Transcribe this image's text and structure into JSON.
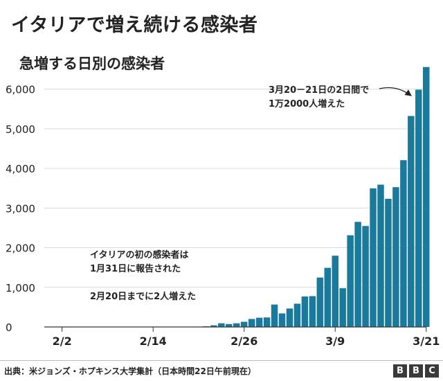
{
  "title": "イタリアで増え続ける感染者",
  "subtitle": "急増する日別の感染者",
  "source": "出典：米ジョンズ・ホプキンス大学集計（日本時間22日午前現在）",
  "logo": {
    "letters": [
      "B",
      "B",
      "C"
    ]
  },
  "chart_data": {
    "type": "bar",
    "title": "急増する日別の感染者",
    "xlabel": "",
    "ylabel": "",
    "ylim": [
      0,
      6500
    ],
    "y_ticks": [
      0,
      1000,
      2000,
      3000,
      4000,
      5000,
      6000
    ],
    "y_tick_labels": [
      "0",
      "1,000",
      "2,000",
      "3,000",
      "4,000",
      "5,000",
      "6,000"
    ],
    "x_tick_labels": [
      {
        "label": "2/2",
        "index": 2
      },
      {
        "label": "2/14",
        "index": 14
      },
      {
        "label": "2/26",
        "index": 26
      },
      {
        "label": "3/9",
        "index": 38
      },
      {
        "label": "3/21",
        "index": 50
      }
    ],
    "start_date": "1/31",
    "bar_color": "#1a7a9c",
    "values": [
      2,
      0,
      0,
      0,
      0,
      0,
      0,
      0,
      1,
      0,
      0,
      0,
      0,
      0,
      0,
      0,
      0,
      0,
      0,
      0,
      2,
      17,
      42,
      93,
      74,
      93,
      131,
      202,
      233,
      240,
      566,
      342,
      466,
      587,
      769,
      778,
      1247,
      1492,
      1797,
      977,
      2313,
      2651,
      2547,
      3497,
      3590,
      3233,
      3526,
      4207,
      5322,
      5986,
      6557
    ],
    "annotations": [
      {
        "lines": [
          "イタリアの初の感染者は",
          "1月31日に報告された",
          "",
          "2月20日までに2人増えた"
        ]
      },
      {
        "lines": [
          "3月20－21日の2日間で",
          "1万2000人増えた"
        ]
      }
    ]
  }
}
